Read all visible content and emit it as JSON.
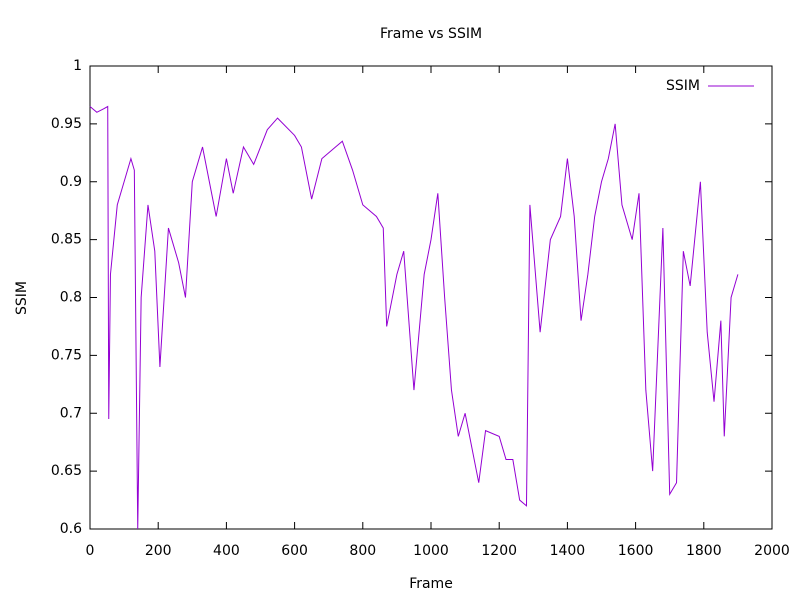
{
  "chart_data": {
    "type": "line",
    "title": "Frame vs SSIM",
    "x_label": "Frame",
    "y_label": "SSIM",
    "x": [
      0,
      20,
      40,
      52,
      55,
      60,
      80,
      100,
      120,
      130,
      140,
      150,
      170,
      190,
      205,
      230,
      260,
      280,
      300,
      330,
      370,
      400,
      420,
      450,
      480,
      520,
      550,
      600,
      620,
      650,
      680,
      720,
      740,
      770,
      800,
      840,
      860,
      870,
      900,
      920,
      950,
      980,
      1000,
      1020,
      1040,
      1060,
      1080,
      1100,
      1140,
      1160,
      1200,
      1220,
      1240,
      1260,
      1280,
      1290,
      1320,
      1350,
      1380,
      1400,
      1420,
      1440,
      1460,
      1480,
      1500,
      1520,
      1540,
      1560,
      1590,
      1610,
      1630,
      1650,
      1680,
      1700,
      1720,
      1740,
      1760,
      1790,
      1810,
      1830,
      1850,
      1860,
      1870,
      1880,
      1900
    ],
    "series": [
      {
        "name": "SSIM",
        "color": "#9400d3",
        "values": [
          0.965,
          0.96,
          0.963,
          0.965,
          0.695,
          0.82,
          0.88,
          0.9,
          0.92,
          0.91,
          0.6,
          0.8,
          0.88,
          0.84,
          0.74,
          0.86,
          0.83,
          0.8,
          0.9,
          0.93,
          0.87,
          0.92,
          0.89,
          0.93,
          0.915,
          0.945,
          0.955,
          0.94,
          0.93,
          0.885,
          0.92,
          0.93,
          0.935,
          0.91,
          0.88,
          0.87,
          0.86,
          0.775,
          0.82,
          0.84,
          0.72,
          0.82,
          0.85,
          0.89,
          0.8,
          0.72,
          0.68,
          0.7,
          0.64,
          0.685,
          0.68,
          0.66,
          0.66,
          0.625,
          0.62,
          0.88,
          0.77,
          0.85,
          0.87,
          0.92,
          0.87,
          0.78,
          0.82,
          0.87,
          0.9,
          0.92,
          0.95,
          0.88,
          0.85,
          0.89,
          0.72,
          0.65,
          0.86,
          0.63,
          0.64,
          0.84,
          0.81,
          0.9,
          0.77,
          0.71,
          0.78,
          0.68,
          0.74,
          0.8,
          0.82
        ]
      }
    ],
    "xlim": [
      0,
      2000
    ],
    "xticks": [
      0,
      200,
      400,
      600,
      800,
      1000,
      1200,
      1400,
      1600,
      1800,
      2000
    ],
    "ylim": [
      0.6,
      1
    ],
    "yticks": [
      0.6,
      0.65,
      0.7,
      0.75,
      0.8,
      0.85,
      0.9,
      0.95,
      1
    ],
    "grid": false,
    "legend": "top-right"
  }
}
